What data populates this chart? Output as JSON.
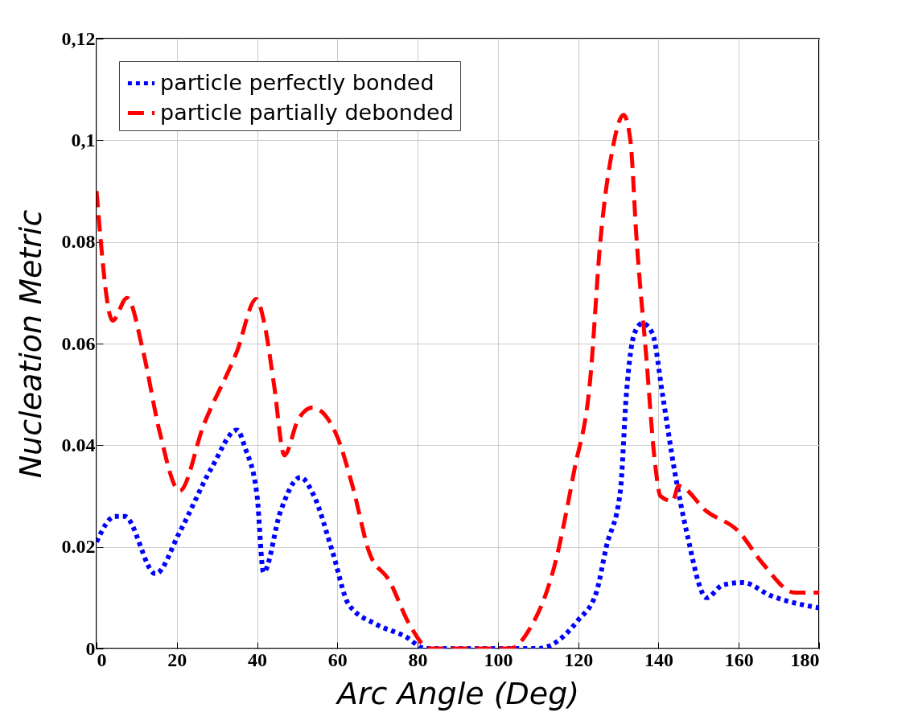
{
  "chart_data": {
    "type": "line",
    "xlabel": "Arc Angle (Deg)",
    "ylabel": "Nucleation Metric",
    "xlim": [
      0,
      180
    ],
    "xticks": [
      0,
      20,
      40,
      60,
      80,
      100,
      120,
      140,
      160,
      180
    ],
    "ylim": [
      0,
      0.12
    ],
    "yticks": [
      0,
      0.02,
      0.04,
      0.06,
      0.08,
      {
        "value": 0.1,
        "label": "0,1"
      },
      {
        "value": 0.12,
        "label": "0,12"
      }
    ],
    "grid": true,
    "legend": "top left",
    "series": [
      {
        "name": "particle perfectly bonded",
        "color": "#0000ff",
        "line_style": "dotted",
        "x": [
          0,
          4.6,
          7,
          14.7,
          20.7,
          28.7,
          35,
          37,
          40,
          41.6,
          45.8,
          50.8,
          54.2,
          58.8,
          62.8,
          69.9,
          76.9,
          82,
          90,
          100,
          110,
          120,
          124.5,
          127,
          130.5,
          132,
          134,
          136,
          138.5,
          141,
          144,
          147,
          152,
          156,
          161,
          168,
          180
        ],
        "values": [
          0.021,
          0.026,
          0.026,
          0.0147,
          0.0229,
          0.0356,
          0.043,
          0.0395,
          0.03,
          0.015,
          0.0269,
          0.0337,
          0.03,
          0.019,
          0.0087,
          0.0047,
          0.0024,
          0,
          0,
          0,
          0,
          0.0056,
          0.011,
          0.02,
          0.031,
          0.05,
          0.062,
          0.064,
          0.062,
          0.05,
          0.035,
          0.023,
          0.01,
          0.0125,
          0.013,
          0.0104,
          0.008
        ]
      },
      {
        "name": "particle partially debonded",
        "color": "#ff0000",
        "line_style": "dashed",
        "x": [
          0,
          4,
          7.6,
          11.6,
          15.7,
          20.7,
          26.7,
          35,
          39.8,
          41.8,
          44.2,
          46.8,
          50.2,
          53.8,
          59.8,
          63.9,
          67.9,
          72.9,
          78,
          83,
          90,
          100,
          103,
          108,
          114,
          119,
          123,
          125.5,
          128.5,
          131.3,
          133,
          134.5,
          137,
          139,
          140.5,
          143.5,
          145,
          152,
          160,
          166,
          174,
          180
        ],
        "values": [
          0.09,
          0.0645,
          0.069,
          0.0585,
          0.0427,
          0.031,
          0.044,
          0.0585,
          0.0688,
          0.064,
          0.052,
          0.038,
          0.045,
          0.0474,
          0.042,
          0.0316,
          0.019,
          0.0134,
          0.0047,
          0,
          0,
          0,
          0,
          0.004,
          0.016,
          0.035,
          0.053,
          0.08,
          0.098,
          0.105,
          0.1,
          0.081,
          0.057,
          0.0375,
          0.03,
          0.029,
          0.032,
          0.027,
          0.023,
          0.0167,
          0.011,
          0.011
        ]
      }
    ]
  }
}
